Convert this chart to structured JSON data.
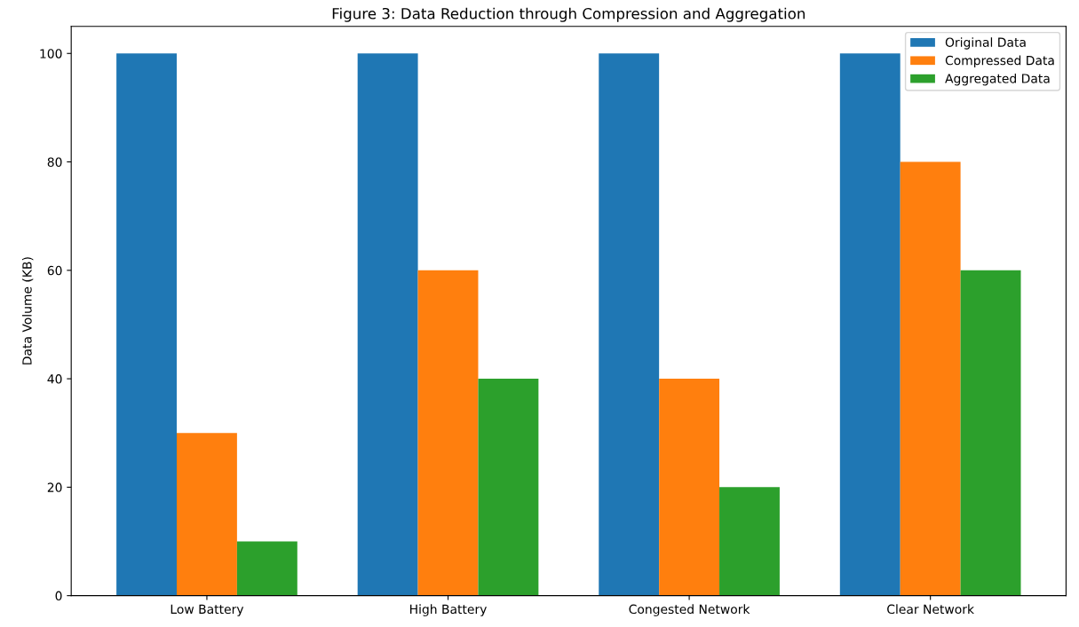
{
  "chart_data": {
    "type": "bar",
    "title": "Figure 3: Data Reduction through Compression and Aggregation",
    "ylabel": "Data Volume (KB)",
    "categories": [
      "Low Battery",
      "High Battery",
      "Congested Network",
      "Clear Network"
    ],
    "series": [
      {
        "name": "Original Data",
        "color": "#1f77b4",
        "values": [
          100,
          100,
          100,
          100
        ]
      },
      {
        "name": "Compressed Data",
        "color": "#ff7f0e",
        "values": [
          30,
          60,
          40,
          80
        ]
      },
      {
        "name": "Aggregated Data",
        "color": "#2ca02c",
        "values": [
          10,
          40,
          20,
          60
        ]
      }
    ],
    "ylim": [
      0,
      105
    ],
    "yticks": [
      0,
      20,
      40,
      60,
      80,
      100
    ],
    "legend": "top right",
    "grid": false
  }
}
